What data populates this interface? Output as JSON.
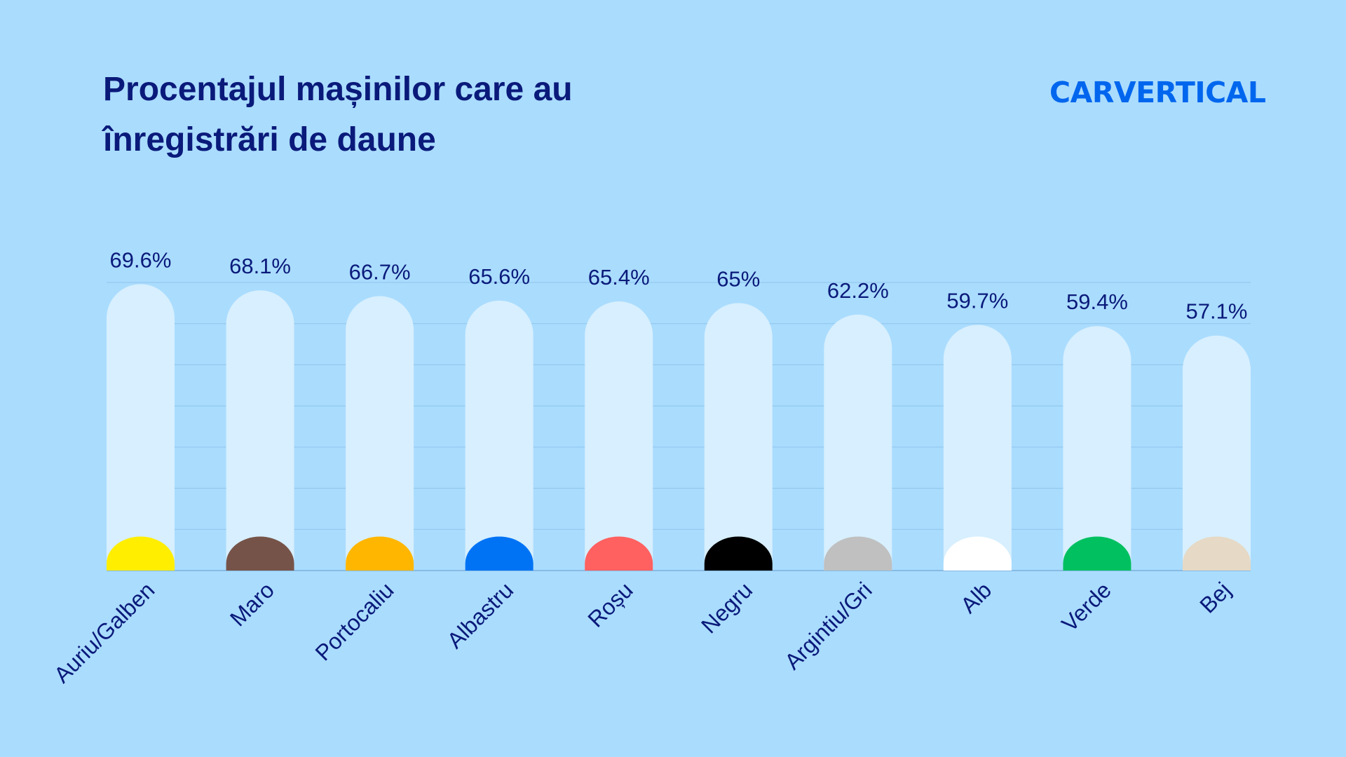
{
  "title_line1": "Procentajul mașinilor care au",
  "title_line2": "înregistrări de daune",
  "logo": "CARVERTICAL",
  "colors": {
    "background": "#aadcfe",
    "bar_track": "#d7effe",
    "text": "#0a1a7a",
    "logo": "#0066ee"
  },
  "chart_data": {
    "type": "bar",
    "title": "Procentajul mașinilor care au înregistrări de daune",
    "categories": [
      "Auriu/Galben",
      "Maro",
      "Portocaliu",
      "Albastru",
      "Roșu",
      "Negru",
      "Argintiu/Gri",
      "Alb",
      "Verde",
      "Bej"
    ],
    "values": [
      69.6,
      68.1,
      66.7,
      65.6,
      65.4,
      65,
      62.2,
      59.7,
      59.4,
      57.1
    ],
    "value_labels": [
      "69.6%",
      "68.1%",
      "66.7%",
      "65.6%",
      "65.4%",
      "65%",
      "62.2%",
      "59.7%",
      "59.4%",
      "57.1%"
    ],
    "marker_colors": [
      "#ffee00",
      "#765349",
      "#ffb600",
      "#0073f5",
      "#ff6060",
      "#000000",
      "#c0c0c0",
      "#ffffff",
      "#00c060",
      "#e6d9c5"
    ],
    "ylim": [
      0,
      70
    ],
    "grid": true,
    "xlabel": "",
    "ylabel": ""
  }
}
